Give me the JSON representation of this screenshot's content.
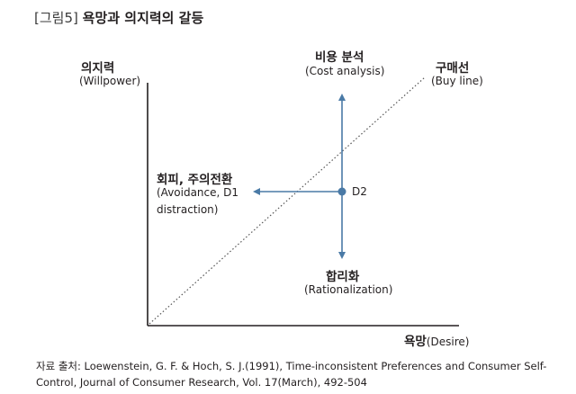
{
  "figure": {
    "number": "[그림5]",
    "title": "욕망과 의지력의 갈등"
  },
  "axes": {
    "y_ko": "의지력",
    "y_en": "(Willpower)",
    "x_ko": "욕망",
    "x_en": "(Desire)"
  },
  "nodes": {
    "up_ko": "비용 분석",
    "up_en": "(Cost analysis)",
    "buy_ko": "구매선",
    "buy_en": "(Buy line)",
    "left_ko": "회피, 주의전환",
    "left_en_1": "(Avoidance, D1",
    "left_en_2": "distraction)",
    "point": "D2",
    "down_ko": "합리화",
    "down_en": "(Rationalization)"
  },
  "source": {
    "line1": "자료 출처: Loewenstein, G. F. & Hoch, S. J.(1991), Time-inconsistent Preferences and Consumer Self-",
    "line2": "Control, Journal of Consumer Research, Vol. 17(March), 492-504"
  },
  "colors": {
    "arrow": "#4a7aa6",
    "axis": "#231f20",
    "dotted": "#555555"
  }
}
